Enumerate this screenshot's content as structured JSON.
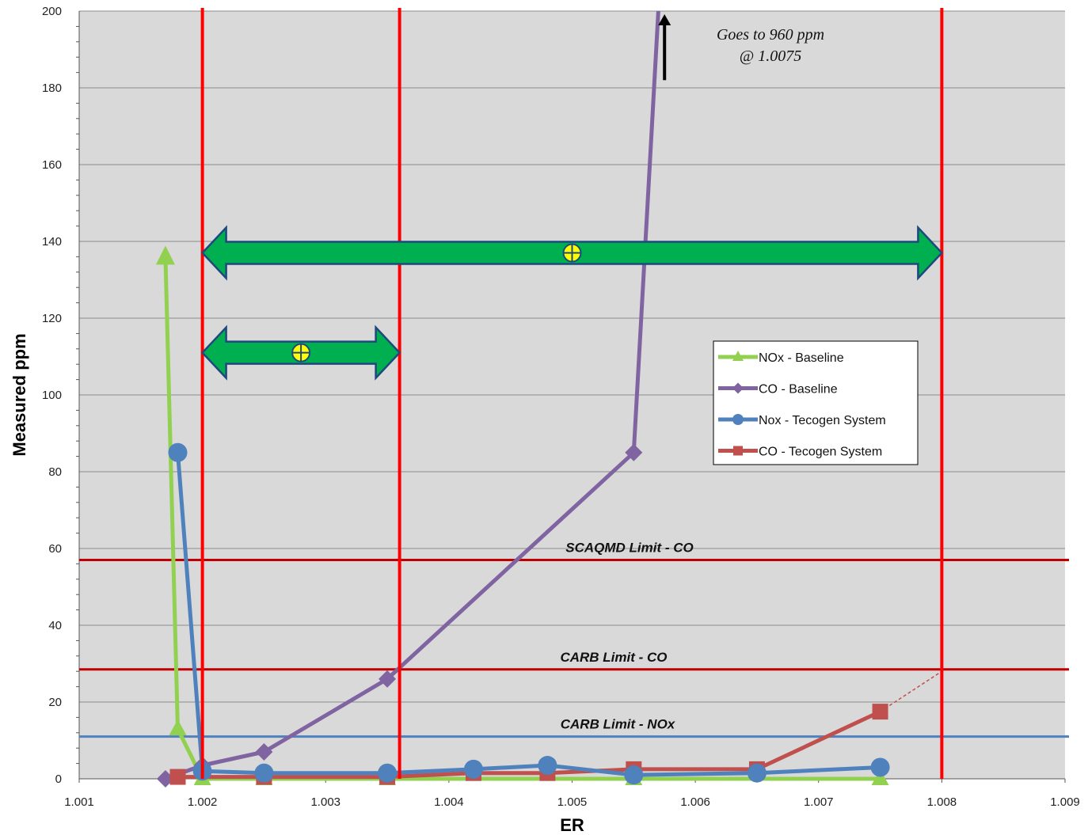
{
  "chart_data": {
    "type": "line",
    "xlabel": "ER",
    "ylabel": "Measured ppm",
    "xlim": [
      1.001,
      1.009
    ],
    "ylim": [
      0,
      200
    ],
    "x_ticks": [
      "1.001",
      "1.002",
      "1.003",
      "1.004",
      "1.005",
      "1.006",
      "1.007",
      "1.008",
      "1.009"
    ],
    "y_ticks": [
      "0",
      "20",
      "40",
      "60",
      "80",
      "100",
      "120",
      "140",
      "160",
      "180",
      "200"
    ],
    "grid": true,
    "legend_position": "right-middle",
    "series": [
      {
        "name": "NOx - Baseline",
        "color": "#92d050",
        "marker": "triangle",
        "points": [
          [
            1.0017,
            136
          ],
          [
            1.0018,
            13
          ],
          [
            1.002,
            0
          ],
          [
            1.0025,
            0
          ],
          [
            1.0035,
            0
          ],
          [
            1.0055,
            0
          ],
          [
            1.0075,
            0
          ]
        ]
      },
      {
        "name": "CO - Baseline",
        "color": "#8064a2",
        "marker": "diamond",
        "points": [
          [
            1.0017,
            0
          ],
          [
            1.002,
            3.5
          ],
          [
            1.0025,
            7
          ],
          [
            1.0035,
            26
          ],
          [
            1.0055,
            85
          ],
          [
            1.0057,
            200
          ]
        ]
      },
      {
        "name": "Nox - Tecogen System",
        "color": "#4f81bd",
        "marker": "circle",
        "points": [
          [
            1.0018,
            85
          ],
          [
            1.002,
            2
          ],
          [
            1.0025,
            1.5
          ],
          [
            1.0035,
            1.5
          ],
          [
            1.0042,
            2.5
          ],
          [
            1.0048,
            3.5
          ],
          [
            1.0055,
            1
          ],
          [
            1.0065,
            1.5
          ],
          [
            1.0075,
            3
          ]
        ]
      },
      {
        "name": "CO - Tecogen System",
        "color": "#c0504d",
        "marker": "square",
        "points": [
          [
            1.0018,
            0.5
          ],
          [
            1.0025,
            0.5
          ],
          [
            1.0035,
            0.5
          ],
          [
            1.0042,
            1.5
          ],
          [
            1.0048,
            1.5
          ],
          [
            1.0055,
            2.5
          ],
          [
            1.0065,
            2.5
          ],
          [
            1.0075,
            17.5
          ]
        ]
      }
    ],
    "trend_extension": {
      "from": [
        1.0075,
        17.5
      ],
      "to": [
        1.008,
        28
      ],
      "color": "#c0504d"
    },
    "horizontal_limits": [
      {
        "label": "SCAQMD Limit - CO",
        "y": 57,
        "color": "#c00000"
      },
      {
        "label": "CARB Limit - CO",
        "y": 28.5,
        "color": "#c00000"
      },
      {
        "label": "CARB Limit - NOx",
        "y": 11,
        "color": "#4f81bd"
      }
    ],
    "vertical_lines": [
      {
        "x": 1.002,
        "color": "#ff0000"
      },
      {
        "x": 1.0036,
        "color": "#ff0000"
      },
      {
        "x": 1.008,
        "color": "#ff0000"
      }
    ],
    "range_arrows": [
      {
        "from": 1.002,
        "to": 1.008,
        "y": 137,
        "color": "#00b050"
      },
      {
        "from": 1.002,
        "to": 1.0036,
        "y": 111,
        "color": "#00b050"
      }
    ],
    "annotation": {
      "lines": [
        "Goes to 960 ppm",
        "@ 1.0075"
      ],
      "arrow_x": 1.00575,
      "arrow_from_y": 182,
      "arrow_to_y": 200
    }
  }
}
